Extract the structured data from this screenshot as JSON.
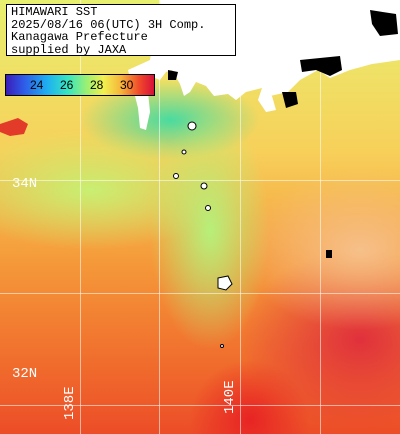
{
  "header": {
    "line1": "HIMAWARI SST",
    "line2": "2025/08/16 06(UTC) 3H Comp.",
    "line3": "Kanagawa Prefecture",
    "line4": "supplied by JAXA"
  },
  "colorbar": {
    "ticks": [
      "24",
      "26",
      "28",
      "30"
    ]
  },
  "grid_labels": {
    "lat_34": "34N",
    "lat_32": "32N",
    "lon_138": "138E",
    "lon_140": "140E"
  },
  "colors": {
    "land": "#ffffff",
    "cloud": "#000000",
    "grid": "#ffffff"
  }
}
